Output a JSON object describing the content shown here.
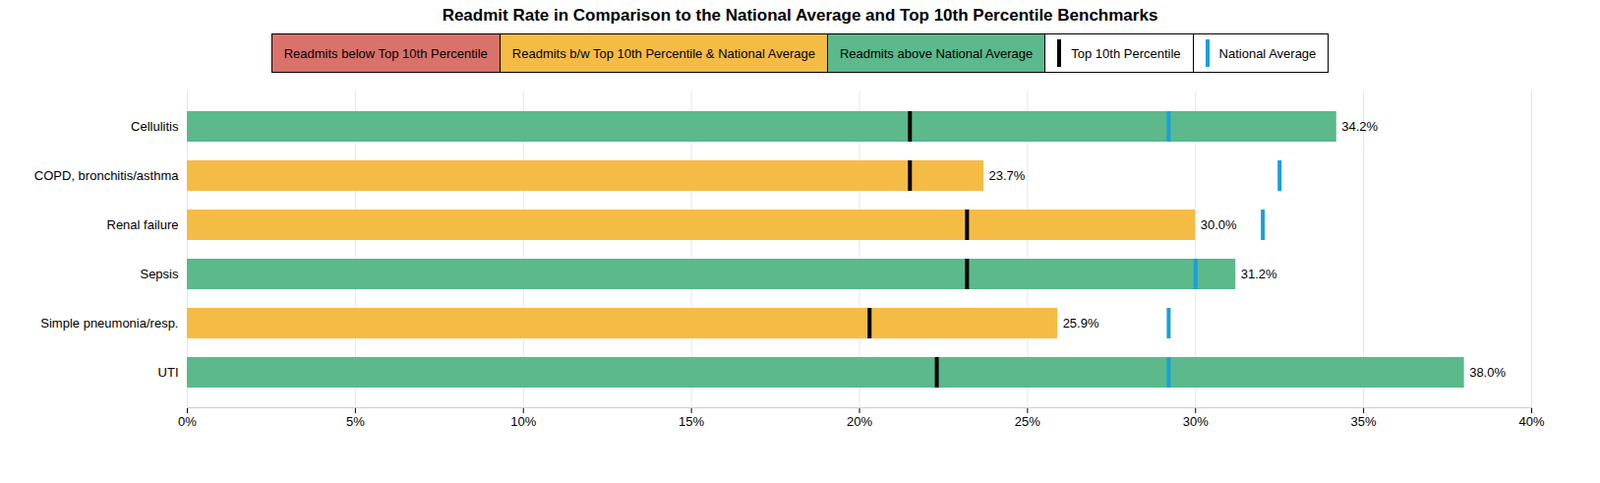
{
  "chart_data": {
    "type": "bar",
    "orientation": "horizontal",
    "title": "Readmit Rate in Comparison to the National Average and Top 10th Percentile Benchmarks",
    "categories": [
      "UTI",
      "Simple pneumonia/resp.",
      "Sepsis",
      "Renal failure",
      "COPD, bronchitis/asthma",
      "Cellulitis"
    ],
    "values": [
      38.0,
      25.9,
      31.2,
      30.0,
      23.7,
      34.2
    ],
    "value_labels": [
      "38.0%",
      "25.9%",
      "31.2%",
      "30.0%",
      "23.7%",
      "34.2%"
    ],
    "data_labels": true,
    "colors": [
      "#5bb98b",
      "#f5bc45",
      "#5bb98b",
      "#f5bc45",
      "#f5bc45",
      "#5bb98b"
    ],
    "series": [
      {
        "name": "Top 10th Percentile",
        "color": "#000000",
        "type": "tick",
        "values": [
          22.3,
          20.3,
          23.2,
          23.2,
          21.5,
          21.5
        ]
      },
      {
        "name": "National Average",
        "color": "#1a9fdc",
        "type": "tick",
        "values": [
          29.2,
          29.2,
          30.0,
          32.0,
          32.5,
          29.2
        ]
      }
    ],
    "color_legend": [
      {
        "label": "Readmits below Top 10th Percentile",
        "color": "#d9726a"
      },
      {
        "label": "Readmits b/w Top 10th Percentile & National Average",
        "color": "#f5bc45"
      },
      {
        "label": "Readmits above National Average",
        "color": "#5bb98b"
      }
    ],
    "legend": "top",
    "xlim": [
      0,
      40
    ],
    "xticks": [
      {
        "value": 0,
        "label": "0%"
      },
      {
        "value": 5,
        "label": "5%"
      },
      {
        "value": 10,
        "label": "10%"
      },
      {
        "value": 15,
        "label": "15%"
      },
      {
        "value": 20,
        "label": "20%"
      },
      {
        "value": 25,
        "label": "25%"
      },
      {
        "value": 30,
        "label": "30%"
      },
      {
        "value": 35,
        "label": "35%"
      },
      {
        "value": 40,
        "label": "40%"
      }
    ],
    "grid": true
  }
}
